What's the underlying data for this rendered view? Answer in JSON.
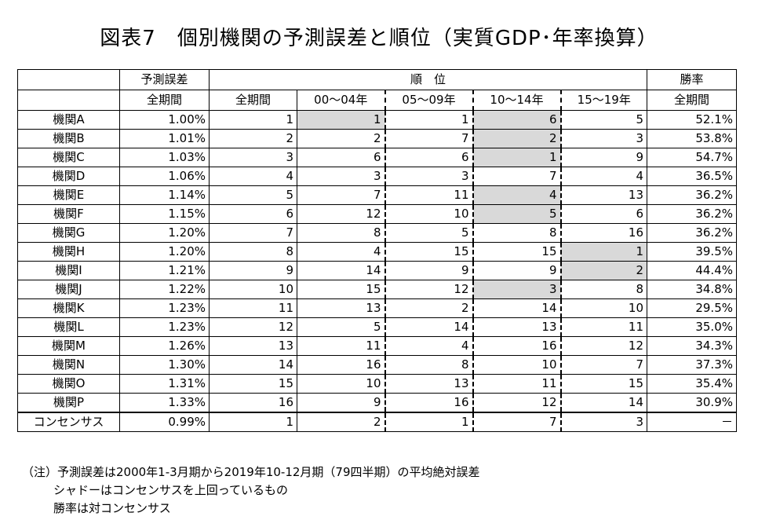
{
  "title": "図表7　個別機関の予測誤差と順位（実質GDP･年率換算）",
  "header": {
    "forecast_error": "予測誤差",
    "rank": "順　位",
    "win_rate": "勝率",
    "full_period": "全期間",
    "periods": [
      "00～04年",
      "05～09年",
      "10～14年",
      "15～19年"
    ]
  },
  "rows": [
    {
      "name": "機関A",
      "error": "1.00%",
      "ranks": [
        "1",
        "1",
        "1",
        "6",
        "5"
      ],
      "win": "52.1%"
    },
    {
      "name": "機関B",
      "error": "1.01%",
      "ranks": [
        "2",
        "2",
        "7",
        "2",
        "3"
      ],
      "win": "53.8%"
    },
    {
      "name": "機関C",
      "error": "1.03%",
      "ranks": [
        "3",
        "6",
        "6",
        "1",
        "9"
      ],
      "win": "54.7%"
    },
    {
      "name": "機関D",
      "error": "1.06%",
      "ranks": [
        "4",
        "3",
        "3",
        "7",
        "4"
      ],
      "win": "36.5%"
    },
    {
      "name": "機関E",
      "error": "1.14%",
      "ranks": [
        "5",
        "7",
        "11",
        "4",
        "13"
      ],
      "win": "36.2%"
    },
    {
      "name": "機関F",
      "error": "1.15%",
      "ranks": [
        "6",
        "12",
        "10",
        "5",
        "6"
      ],
      "win": "36.2%"
    },
    {
      "name": "機関G",
      "error": "1.20%",
      "ranks": [
        "7",
        "8",
        "5",
        "8",
        "16"
      ],
      "win": "36.2%"
    },
    {
      "name": "機関H",
      "error": "1.20%",
      "ranks": [
        "8",
        "4",
        "15",
        "15",
        "1"
      ],
      "win": "39.5%"
    },
    {
      "name": "機関I",
      "error": "1.21%",
      "ranks": [
        "9",
        "14",
        "9",
        "9",
        "2"
      ],
      "win": "44.4%"
    },
    {
      "name": "機関J",
      "error": "1.22%",
      "ranks": [
        "10",
        "15",
        "12",
        "3",
        "8"
      ],
      "win": "34.8%"
    },
    {
      "name": "機関K",
      "error": "1.23%",
      "ranks": [
        "11",
        "13",
        "2",
        "14",
        "10"
      ],
      "win": "29.5%"
    },
    {
      "name": "機関L",
      "error": "1.23%",
      "ranks": [
        "12",
        "5",
        "14",
        "13",
        "11"
      ],
      "win": "35.0%"
    },
    {
      "name": "機関M",
      "error": "1.26%",
      "ranks": [
        "13",
        "11",
        "4",
        "16",
        "12"
      ],
      "win": "34.3%"
    },
    {
      "name": "機関N",
      "error": "1.30%",
      "ranks": [
        "14",
        "16",
        "8",
        "10",
        "7"
      ],
      "win": "37.3%"
    },
    {
      "name": "機関O",
      "error": "1.31%",
      "ranks": [
        "15",
        "10",
        "13",
        "11",
        "15"
      ],
      "win": "35.4%"
    },
    {
      "name": "機関P",
      "error": "1.33%",
      "ranks": [
        "16",
        "9",
        "16",
        "12",
        "14"
      ],
      "win": "30.9%"
    }
  ],
  "consensus": {
    "name": "コンセンサス",
    "error": "0.99%",
    "ranks": [
      "1",
      "2",
      "1",
      "7",
      "3"
    ],
    "win": "－"
  },
  "shade_color": "#d9d9d9",
  "notes": [
    "（注）予測誤差は2000年1-3月期から2019年10-12月期（79四半期）の平均絶対誤差",
    "シャドーはコンセンサスを上回っているもの",
    "勝率は対コンセンサス"
  ]
}
